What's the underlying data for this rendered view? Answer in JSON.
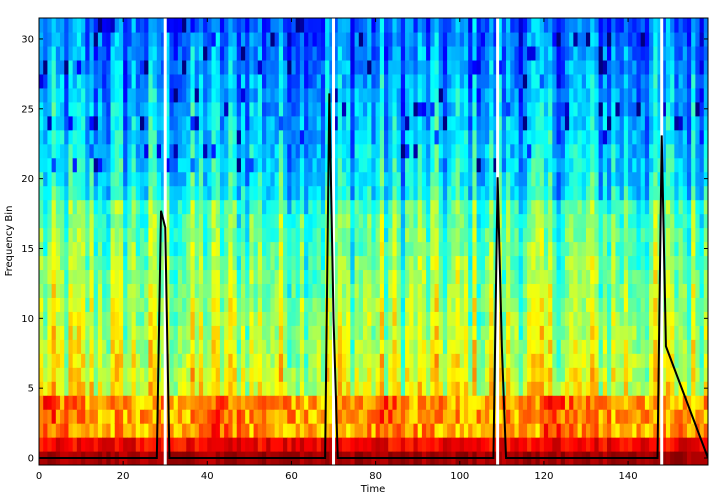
{
  "chart_data": {
    "type": "heatmap",
    "title": "",
    "xlabel": "Time",
    "ylabel": "Frequency Bin",
    "xlim": [
      0,
      159
    ],
    "ylim": [
      -0.5,
      31.5
    ],
    "x_ticks": [
      0,
      20,
      40,
      60,
      80,
      100,
      120,
      140
    ],
    "y_ticks": [
      0,
      5,
      10,
      15,
      20,
      25,
      30
    ],
    "grid": false,
    "colormap": "jet",
    "heatmap_description_rows": 32,
    "heatmap_description_cols": 159,
    "vertical_markers": [
      30,
      70,
      109,
      148
    ],
    "vertical_marker_color": "#ffffff",
    "onset_curve": {
      "color": "#000000",
      "x": [
        0,
        28,
        29,
        30,
        31,
        68,
        69,
        70,
        71,
        108,
        109,
        110,
        111,
        147,
        148,
        149,
        159
      ],
      "y": [
        0,
        0,
        17.7,
        16.5,
        0,
        0,
        26.1,
        10,
        0,
        0,
        20.1,
        8,
        0,
        0,
        23.1,
        8,
        0
      ]
    }
  }
}
